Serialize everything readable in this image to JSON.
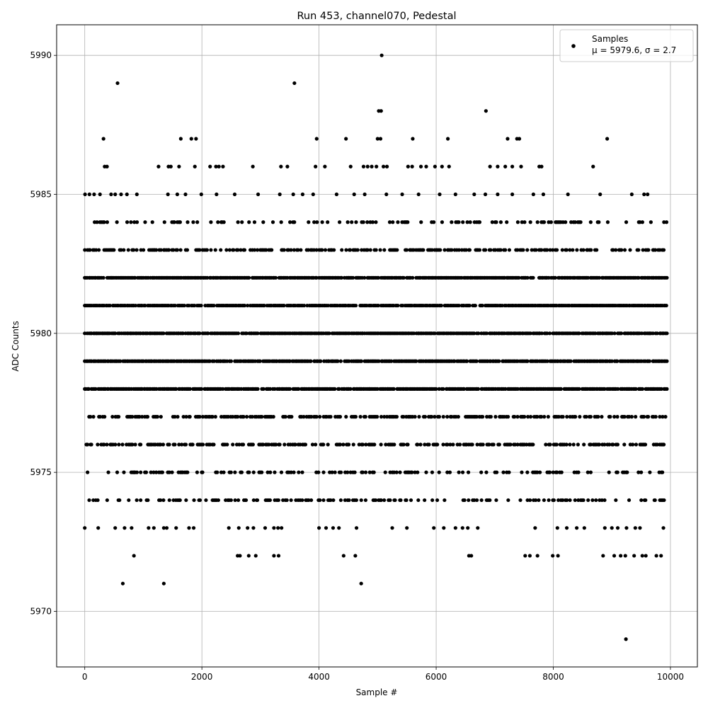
{
  "chart_data": {
    "type": "scatter",
    "title": "Run 453, channel070, Pedestal",
    "xlabel": "Sample #",
    "ylabel": "ADC Counts",
    "xlim": [
      -480,
      10460
    ],
    "ylim": [
      5968.0,
      5991.1
    ],
    "x_ticks": [
      0,
      2000,
      4000,
      6000,
      8000,
      10000
    ],
    "x_tick_labels": [
      "0",
      "2000",
      "4000",
      "6000",
      "8000",
      "10000"
    ],
    "y_ticks": [
      5970,
      5975,
      5980,
      5985,
      5990
    ],
    "y_tick_labels": [
      "5970",
      "5975",
      "5980",
      "5985",
      "5990"
    ],
    "grid": true,
    "legend_position": "top-right",
    "series": [
      {
        "name": "Samples",
        "color": "#000000",
        "marker": "circle",
        "x_range": [
          0,
          9940
        ],
        "num_samples": 10000,
        "mean": 5979.6,
        "std": 2.7,
        "band_levels": [
          {
            "y": 5984,
            "x_start": 0,
            "x_end": 9940
          },
          {
            "y": 5983,
            "x_start": 0,
            "x_end": 9900
          },
          {
            "y": 5982,
            "x_start": 0,
            "x_end": 9940
          },
          {
            "y": 5981,
            "x_start": 0,
            "x_end": 9940
          },
          {
            "y": 5980,
            "x_start": 0,
            "x_end": 9940
          },
          {
            "y": 5979,
            "x_start": 0,
            "x_end": 9940
          },
          {
            "y": 5978,
            "x_start": 0,
            "x_end": 9940
          },
          {
            "y": 5977,
            "x_start": 0,
            "x_end": 9940
          },
          {
            "y": 5976,
            "x_start": 0,
            "x_end": 9940
          },
          {
            "y": 5975,
            "x_start": 0,
            "x_end": 9940
          },
          {
            "y": 5974,
            "x_start": 0,
            "x_end": 9920
          }
        ],
        "sparse_points": [
          {
            "x": 560,
            "y": 5989
          },
          {
            "x": 3580,
            "y": 5989
          },
          {
            "x": 5070,
            "y": 5990
          },
          {
            "x": 5020,
            "y": 5988
          },
          {
            "x": 5060,
            "y": 5988
          },
          {
            "x": 6850,
            "y": 5988
          },
          {
            "x": 320,
            "y": 5987
          },
          {
            "x": 1640,
            "y": 5987
          },
          {
            "x": 1820,
            "y": 5987
          },
          {
            "x": 1900,
            "y": 5987
          },
          {
            "x": 3960,
            "y": 5987
          },
          {
            "x": 4460,
            "y": 5987
          },
          {
            "x": 5000,
            "y": 5987
          },
          {
            "x": 5050,
            "y": 5987
          },
          {
            "x": 5600,
            "y": 5987
          },
          {
            "x": 6200,
            "y": 5987
          },
          {
            "x": 7220,
            "y": 5987
          },
          {
            "x": 7380,
            "y": 5987
          },
          {
            "x": 7420,
            "y": 5987
          },
          {
            "x": 8920,
            "y": 5987
          },
          {
            "x": 340,
            "y": 5986
          },
          {
            "x": 380,
            "y": 5986
          },
          {
            "x": 1260,
            "y": 5986
          },
          {
            "x": 1430,
            "y": 5986
          },
          {
            "x": 1470,
            "y": 5986
          },
          {
            "x": 1610,
            "y": 5986
          },
          {
            "x": 1880,
            "y": 5986
          },
          {
            "x": 2140,
            "y": 5986
          },
          {
            "x": 2240,
            "y": 5986
          },
          {
            "x": 2290,
            "y": 5986
          },
          {
            "x": 2360,
            "y": 5986
          },
          {
            "x": 2870,
            "y": 5986
          },
          {
            "x": 3350,
            "y": 5986
          },
          {
            "x": 3460,
            "y": 5986
          },
          {
            "x": 3940,
            "y": 5986
          },
          {
            "x": 4100,
            "y": 5986
          },
          {
            "x": 4540,
            "y": 5986
          },
          {
            "x": 4760,
            "y": 5986
          },
          {
            "x": 4830,
            "y": 5986
          },
          {
            "x": 4900,
            "y": 5986
          },
          {
            "x": 4980,
            "y": 5986
          },
          {
            "x": 5100,
            "y": 5986
          },
          {
            "x": 5160,
            "y": 5986
          },
          {
            "x": 5520,
            "y": 5986
          },
          {
            "x": 5590,
            "y": 5986
          },
          {
            "x": 5740,
            "y": 5986
          },
          {
            "x": 5830,
            "y": 5986
          },
          {
            "x": 5980,
            "y": 5986
          },
          {
            "x": 6100,
            "y": 5986
          },
          {
            "x": 6220,
            "y": 5986
          },
          {
            "x": 6920,
            "y": 5986
          },
          {
            "x": 7050,
            "y": 5986
          },
          {
            "x": 7180,
            "y": 5986
          },
          {
            "x": 7300,
            "y": 5986
          },
          {
            "x": 7450,
            "y": 5986
          },
          {
            "x": 7760,
            "y": 5986
          },
          {
            "x": 7800,
            "y": 5986
          },
          {
            "x": 8680,
            "y": 5986
          },
          {
            "x": 5,
            "y": 5985
          },
          {
            "x": 80,
            "y": 5985
          },
          {
            "x": 160,
            "y": 5985
          },
          {
            "x": 260,
            "y": 5985
          },
          {
            "x": 450,
            "y": 5985
          },
          {
            "x": 520,
            "y": 5985
          },
          {
            "x": 620,
            "y": 5985
          },
          {
            "x": 720,
            "y": 5985
          },
          {
            "x": 890,
            "y": 5985
          },
          {
            "x": 1420,
            "y": 5985
          },
          {
            "x": 1580,
            "y": 5985
          },
          {
            "x": 1720,
            "y": 5985
          },
          {
            "x": 1990,
            "y": 5985
          },
          {
            "x": 2250,
            "y": 5985
          },
          {
            "x": 2560,
            "y": 5985
          },
          {
            "x": 2960,
            "y": 5985
          },
          {
            "x": 3330,
            "y": 5985
          },
          {
            "x": 3560,
            "y": 5985
          },
          {
            "x": 3720,
            "y": 5985
          },
          {
            "x": 3900,
            "y": 5985
          },
          {
            "x": 4300,
            "y": 5985
          },
          {
            "x": 4600,
            "y": 5985
          },
          {
            "x": 4780,
            "y": 5985
          },
          {
            "x": 5150,
            "y": 5985
          },
          {
            "x": 5420,
            "y": 5985
          },
          {
            "x": 5700,
            "y": 5985
          },
          {
            "x": 6060,
            "y": 5985
          },
          {
            "x": 6330,
            "y": 5985
          },
          {
            "x": 6650,
            "y": 5985
          },
          {
            "x": 6840,
            "y": 5985
          },
          {
            "x": 7050,
            "y": 5985
          },
          {
            "x": 7300,
            "y": 5985
          },
          {
            "x": 7660,
            "y": 5985
          },
          {
            "x": 7830,
            "y": 5985
          },
          {
            "x": 8250,
            "y": 5985
          },
          {
            "x": 8800,
            "y": 5985
          },
          {
            "x": 9340,
            "y": 5985
          },
          {
            "x": 9550,
            "y": 5985
          },
          {
            "x": 9610,
            "y": 5985
          },
          {
            "x": 0,
            "y": 5973
          },
          {
            "x": 230,
            "y": 5973
          },
          {
            "x": 520,
            "y": 5973
          },
          {
            "x": 680,
            "y": 5973
          },
          {
            "x": 800,
            "y": 5973
          },
          {
            "x": 1090,
            "y": 5973
          },
          {
            "x": 1180,
            "y": 5973
          },
          {
            "x": 1350,
            "y": 5973
          },
          {
            "x": 1400,
            "y": 5973
          },
          {
            "x": 1560,
            "y": 5973
          },
          {
            "x": 1780,
            "y": 5973
          },
          {
            "x": 1860,
            "y": 5973
          },
          {
            "x": 2460,
            "y": 5973
          },
          {
            "x": 2630,
            "y": 5973
          },
          {
            "x": 2780,
            "y": 5973
          },
          {
            "x": 2880,
            "y": 5973
          },
          {
            "x": 3080,
            "y": 5973
          },
          {
            "x": 3230,
            "y": 5973
          },
          {
            "x": 3300,
            "y": 5973
          },
          {
            "x": 3360,
            "y": 5973
          },
          {
            "x": 4000,
            "y": 5973
          },
          {
            "x": 4120,
            "y": 5973
          },
          {
            "x": 4240,
            "y": 5973
          },
          {
            "x": 4340,
            "y": 5973
          },
          {
            "x": 4640,
            "y": 5973
          },
          {
            "x": 5250,
            "y": 5973
          },
          {
            "x": 5500,
            "y": 5973
          },
          {
            "x": 5960,
            "y": 5973
          },
          {
            "x": 6130,
            "y": 5973
          },
          {
            "x": 6330,
            "y": 5973
          },
          {
            "x": 6450,
            "y": 5973
          },
          {
            "x": 6540,
            "y": 5973
          },
          {
            "x": 6710,
            "y": 5973
          },
          {
            "x": 7690,
            "y": 5973
          },
          {
            "x": 8070,
            "y": 5973
          },
          {
            "x": 8230,
            "y": 5973
          },
          {
            "x": 8400,
            "y": 5973
          },
          {
            "x": 8530,
            "y": 5973
          },
          {
            "x": 8880,
            "y": 5973
          },
          {
            "x": 9000,
            "y": 5973
          },
          {
            "x": 9100,
            "y": 5973
          },
          {
            "x": 9250,
            "y": 5973
          },
          {
            "x": 9400,
            "y": 5973
          },
          {
            "x": 9480,
            "y": 5973
          },
          {
            "x": 9880,
            "y": 5973
          },
          {
            "x": 2610,
            "y": 5972
          },
          {
            "x": 2650,
            "y": 5972
          },
          {
            "x": 2800,
            "y": 5972
          },
          {
            "x": 2920,
            "y": 5972
          },
          {
            "x": 3230,
            "y": 5972
          },
          {
            "x": 3310,
            "y": 5972
          },
          {
            "x": 840,
            "y": 5972
          },
          {
            "x": 4420,
            "y": 5972
          },
          {
            "x": 4620,
            "y": 5972
          },
          {
            "x": 6560,
            "y": 5972
          },
          {
            "x": 6600,
            "y": 5972
          },
          {
            "x": 7520,
            "y": 5972
          },
          {
            "x": 7600,
            "y": 5972
          },
          {
            "x": 7730,
            "y": 5972
          },
          {
            "x": 7990,
            "y": 5972
          },
          {
            "x": 8080,
            "y": 5972
          },
          {
            "x": 8850,
            "y": 5972
          },
          {
            "x": 9040,
            "y": 5972
          },
          {
            "x": 9150,
            "y": 5972
          },
          {
            "x": 9230,
            "y": 5972
          },
          {
            "x": 9380,
            "y": 5972
          },
          {
            "x": 9520,
            "y": 5972
          },
          {
            "x": 9580,
            "y": 5972
          },
          {
            "x": 9760,
            "y": 5972
          },
          {
            "x": 9840,
            "y": 5972
          },
          {
            "x": 650,
            "y": 5971
          },
          {
            "x": 1350,
            "y": 5971
          },
          {
            "x": 4720,
            "y": 5971
          },
          {
            "x": 9240,
            "y": 5969
          }
        ]
      }
    ],
    "legend": {
      "entries": [
        {
          "line1": "Samples",
          "line2": "μ = 5979.6, σ = 2.7"
        }
      ]
    }
  }
}
